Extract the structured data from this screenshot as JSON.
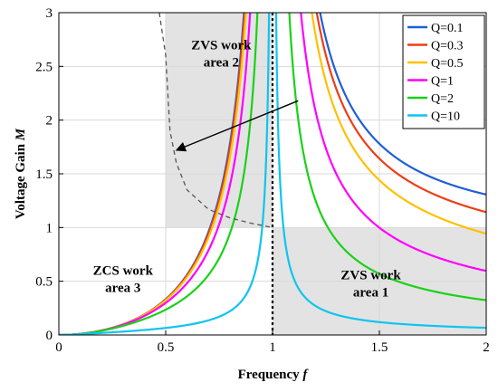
{
  "chart_data": {
    "type": "line",
    "xlabel_text": "Frequency ",
    "xlabel_var": "f",
    "ylabel_text": "Voltage Gain ",
    "ylabel_var": "M",
    "xlim": [
      0,
      2
    ],
    "ylim": [
      0,
      3
    ],
    "xticks": [
      0,
      0.5,
      1,
      1.5,
      2
    ],
    "xtick_labels": [
      "0",
      "0.5",
      "1",
      "1.5",
      "2"
    ],
    "yticks": [
      0,
      0.5,
      1,
      1.5,
      2,
      2.5,
      3
    ],
    "ytick_labels": [
      "0",
      "0.5",
      "1",
      "1.5",
      "2",
      "2.5",
      "3"
    ],
    "grid": true,
    "legend_position": "top-right",
    "model": "M = 1 / sqrt((1 - 1/f^2)^2 + Q^2 (f - 1/f)^2)",
    "series": [
      {
        "name": "Q=0.1",
        "Q": 0.1,
        "color": "#1f5fd6"
      },
      {
        "name": "Q=0.3",
        "Q": 0.3,
        "color": "#ee3d16"
      },
      {
        "name": "Q=0.5",
        "Q": 0.5,
        "color": "#ffc000"
      },
      {
        "name": "Q=1",
        "Q": 1,
        "color": "#ff00ff"
      },
      {
        "name": "Q=2",
        "Q": 2,
        "color": "#19d119"
      },
      {
        "name": "Q=10",
        "Q": 10,
        "color": "#10c4ef"
      }
    ],
    "peak_locus": {
      "style": "dashed",
      "color": "#555555",
      "x": [
        0.47,
        0.5,
        0.52,
        0.55,
        0.6,
        0.7,
        0.8,
        0.9,
        1.0
      ],
      "y": [
        3.0,
        2.6,
        1.9,
        1.6,
        1.35,
        1.17,
        1.09,
        1.04,
        1.0
      ]
    },
    "boundary_line": {
      "x": 1.0,
      "style": "dotted",
      "color": "#000000"
    },
    "shaded_regions": [
      {
        "x": [
          0.5,
          1.0
        ],
        "y": [
          1.0,
          3.0
        ],
        "color": "#e3e3e3"
      },
      {
        "x": [
          1.0,
          2.0
        ],
        "y": [
          0,
          1.0
        ],
        "color": "#e3e3e3"
      }
    ],
    "arrow": {
      "from": [
        1.12,
        2.18
      ],
      "to": [
        0.55,
        1.72
      ],
      "color": "#000000"
    },
    "annotations": [
      {
        "lines": [
          "ZVS work",
          "area 2"
        ],
        "x": 0.76,
        "y": 2.66
      },
      {
        "lines": [
          "ZCS work",
          "area 3"
        ],
        "x": 0.3,
        "y": 0.56
      },
      {
        "lines": [
          "ZVS work",
          "area 1"
        ],
        "x": 1.46,
        "y": 0.52
      }
    ]
  }
}
